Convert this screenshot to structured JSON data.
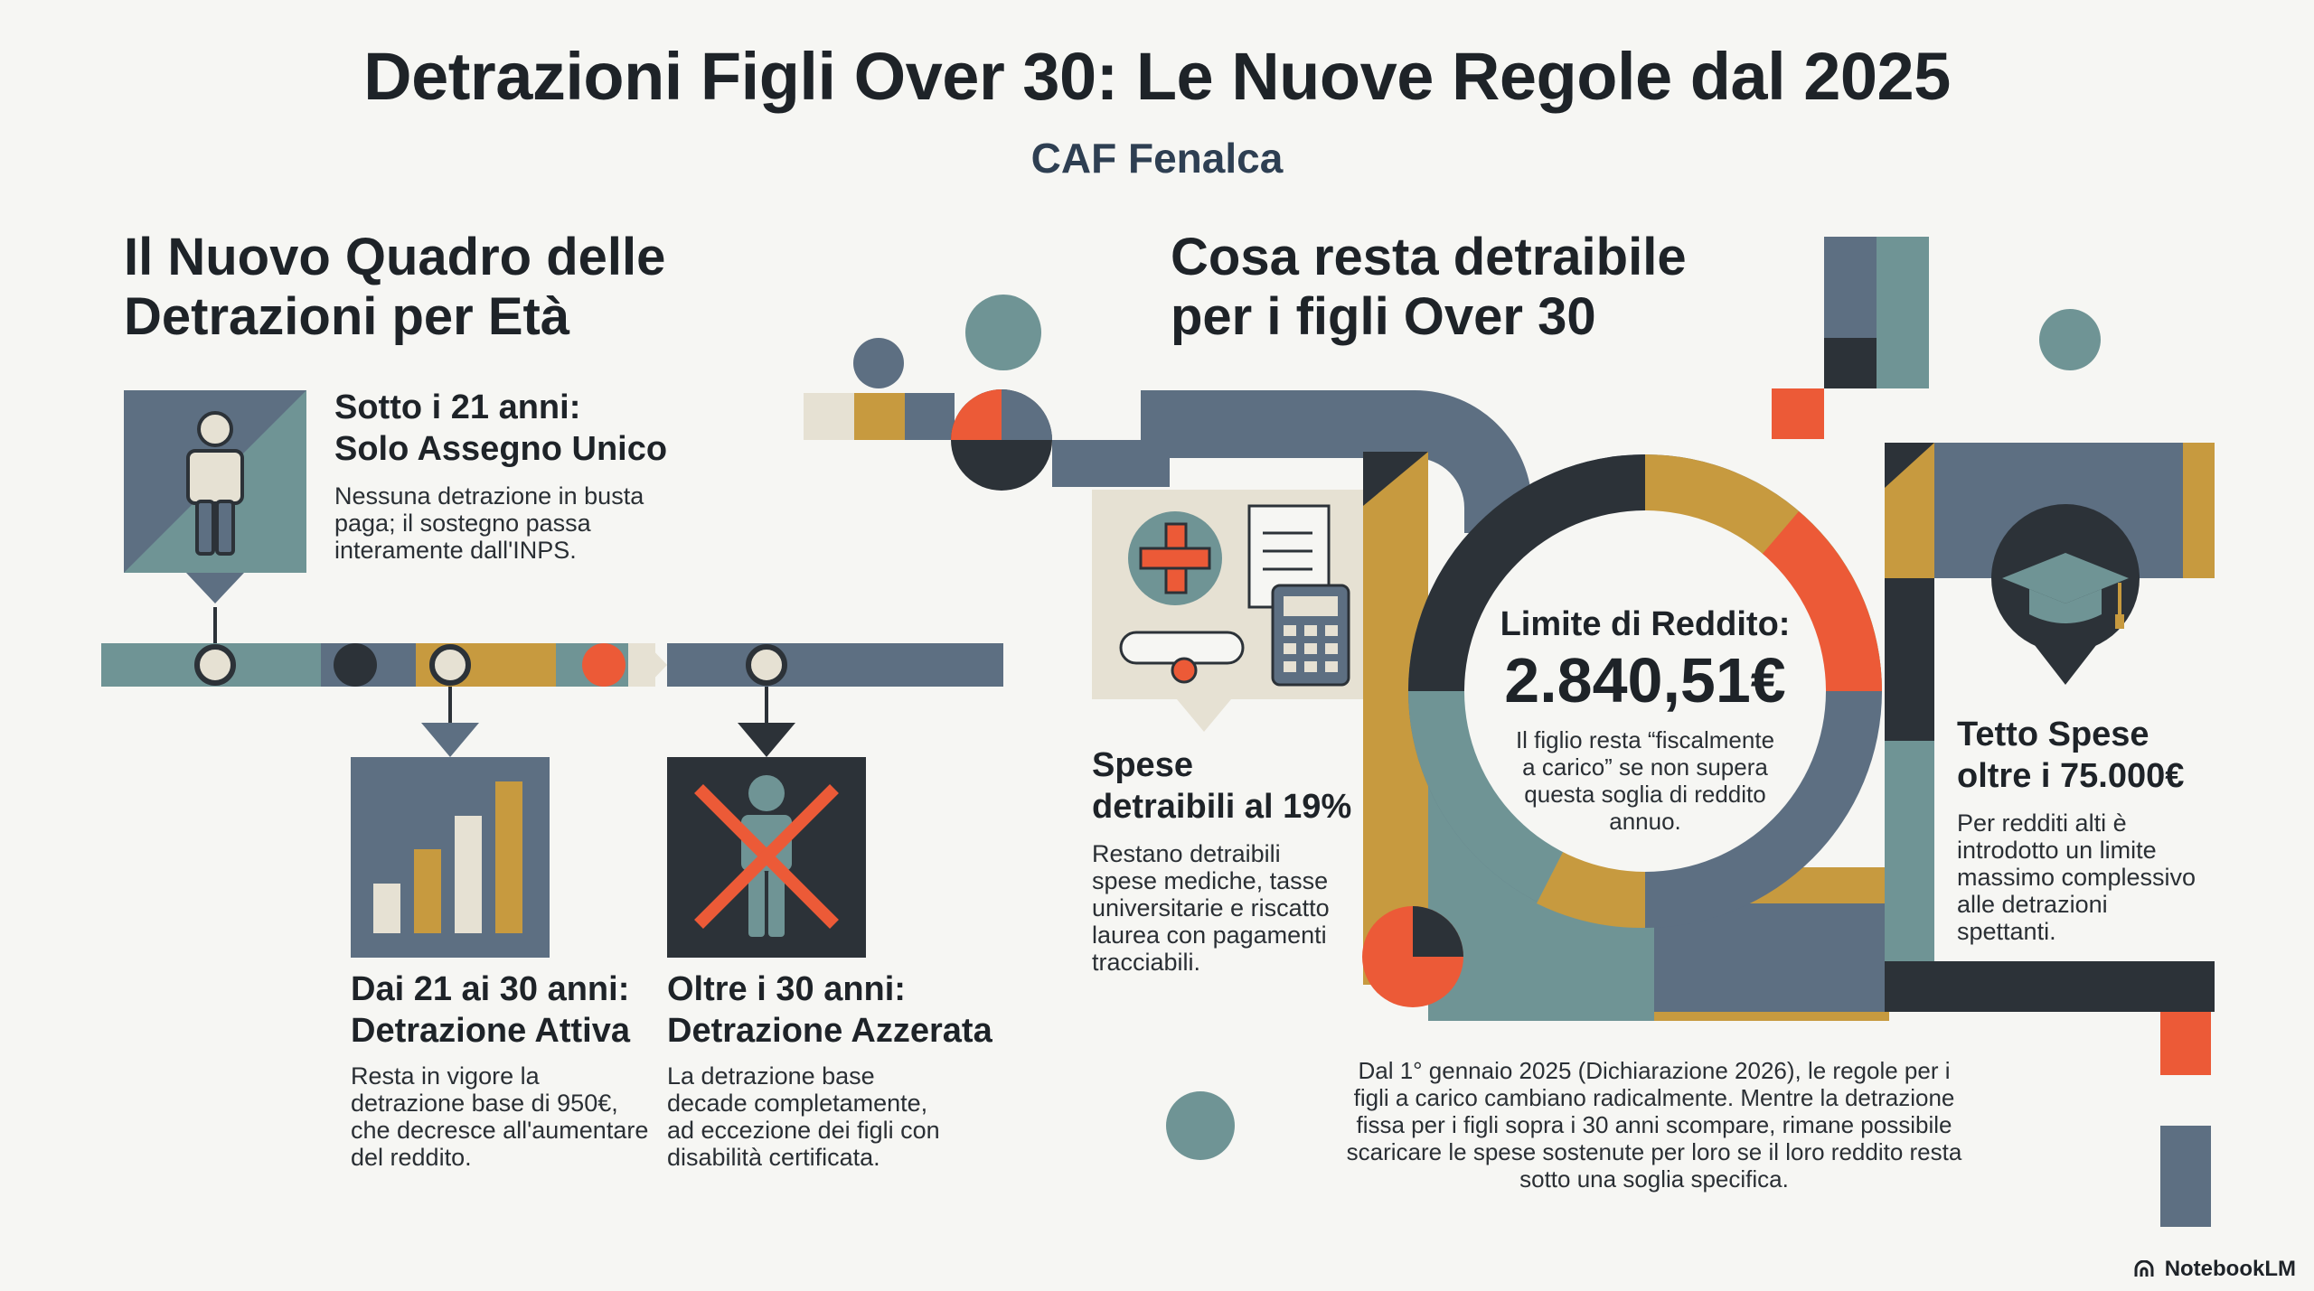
{
  "title": "Detrazioni Figli Over 30: Le Nuove Regole dal 2025",
  "subtitle": "CAF Fenalca",
  "left_section": {
    "title_line1": "Il Nuovo Quadro delle",
    "title_line2": "Detrazioni per Età",
    "cards": [
      {
        "heading_line1": "Sotto i 21 anni:",
        "heading_line2": "Solo Assegno Unico",
        "body": [
          "Nessuna detrazione in busta",
          "paga; il sostegno passa",
          "interamente dall'INPS."
        ],
        "icon": "person-icon"
      },
      {
        "heading_line1": "Dai 21 ai 30 anni:",
        "heading_line2": "Detrazione Attiva",
        "body": [
          "Resta in vigore la",
          "detrazione base di 950€,",
          "che decresce all'aumentare",
          "del reddito."
        ],
        "icon": "bar-chart-icon"
      },
      {
        "heading_line1": "Oltre i 30 anni:",
        "heading_line2": "Detrazione Azzerata",
        "body": [
          "La detrazione base",
          "decade completamente,",
          "ad eccezione dei figli con",
          "disabilità certificata."
        ],
        "icon": "crossed-person-icon"
      }
    ]
  },
  "right_section": {
    "title_line1": "Cosa resta detraibile",
    "title_line2": "per i figli Over 30",
    "expenses": {
      "heading_line1": "Spese",
      "heading_line2": "detraibili al 19%",
      "body": [
        "Restano detraibili",
        "spese mediche, tasse",
        "universitarie e riscatto",
        "laurea con pagamenti",
        "tracciabili."
      ],
      "icons": [
        "medical-cross-icon",
        "document-icon",
        "calculator-icon",
        "diploma-icon"
      ]
    },
    "income_limit": {
      "label": "Limite di Reddito:",
      "value": "2.840,51€",
      "body": [
        "Il figlio resta “fiscalmente",
        "a carico” se non supera",
        "questa soglia di reddito",
        "annuo."
      ]
    },
    "spending_cap": {
      "heading_line1": "Tetto Spese",
      "heading_line2": "oltre i 75.000€",
      "body": [
        "Per redditi alti è",
        "introdotto un limite",
        "massimo complessivo",
        "alle detrazioni",
        "spettanti."
      ],
      "icon": "graduation-cap-icon"
    },
    "footnote": [
      "Dal 1° gennaio 2025 (Dichiarazione 2026), le regole per i",
      "figli a carico cambiano radicalmente. Mentre la detrazione",
      "fissa per i figli sopra i 30 anni scompare, rimane possibile",
      "scaricare le spese sostenute per loro se il loro reddito resta",
      "sotto una soglia specifica."
    ]
  },
  "branding": "NotebookLM",
  "colors": {
    "slate": "#5d6f82",
    "teal": "#6f9495",
    "ochre": "#c79a3f",
    "dark": "#2c3238",
    "red": "#ec5a37",
    "cream": "#e6e1d3"
  }
}
